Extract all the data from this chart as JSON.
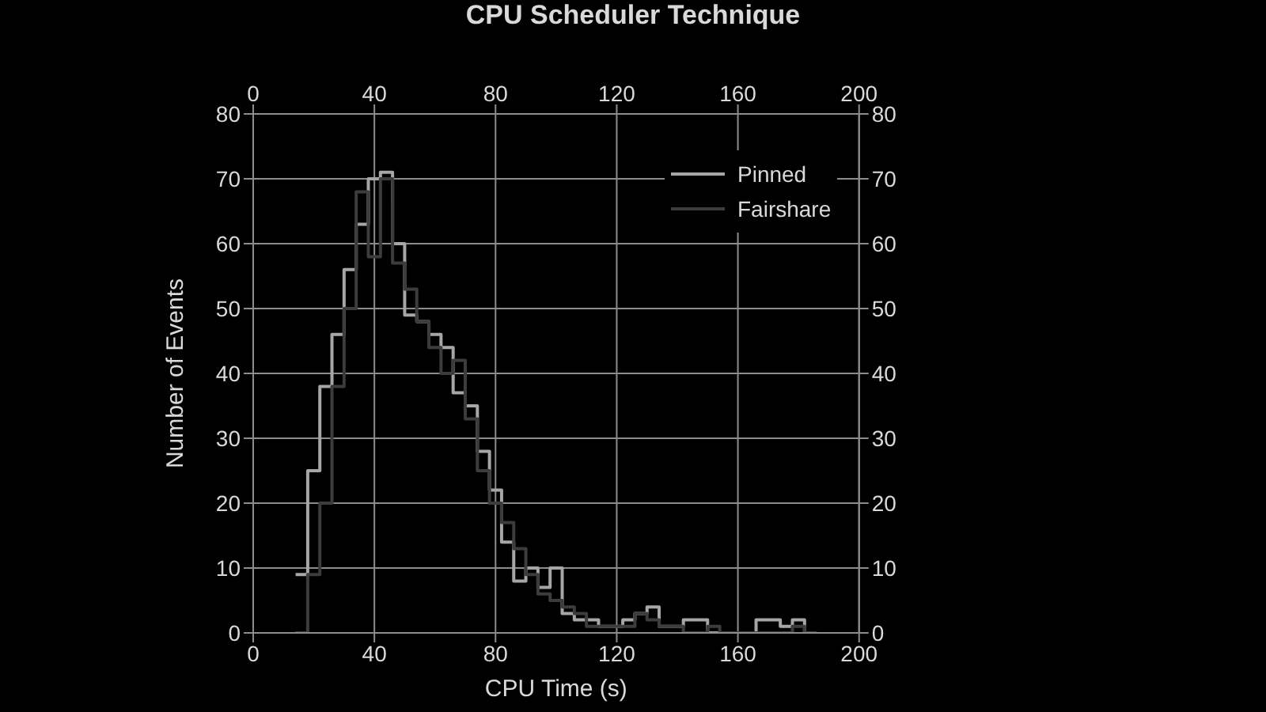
{
  "chart_data": {
    "type": "histogram",
    "title": "CPU Scheduler Technique",
    "xlabel": "CPU Time (s)",
    "ylabel": "Number of Events",
    "bins": [
      14,
      18,
      22,
      26,
      30,
      34,
      38,
      42,
      46,
      50,
      54,
      58,
      62,
      66,
      70,
      74,
      78,
      82,
      86,
      90,
      94,
      98,
      102,
      106,
      110,
      114,
      118,
      122,
      126,
      130,
      134,
      138,
      142,
      146,
      150,
      154,
      158,
      162,
      166,
      170,
      174,
      178,
      182,
      186
    ],
    "series": [
      {
        "name": "Pinned",
        "color": "#a6a6a6",
        "values": [
          9,
          25,
          38,
          46,
          56,
          63,
          70,
          71,
          60,
          49,
          48,
          46,
          44,
          37,
          35,
          28,
          22,
          14,
          8,
          10,
          7,
          10,
          3,
          2,
          2,
          1,
          1,
          2,
          3,
          4,
          1,
          1,
          2,
          2,
          0,
          0,
          0,
          0,
          2,
          2,
          1,
          2,
          0
        ]
      },
      {
        "name": "Fairshare",
        "color": "#3c3c3c",
        "values": [
          0,
          9,
          20,
          38,
          50,
          68,
          58,
          70,
          57,
          53,
          48,
          44,
          40,
          42,
          33,
          25,
          20,
          17,
          13,
          9,
          6,
          5,
          4,
          3,
          1,
          1,
          1,
          1,
          3,
          2,
          1,
          1,
          0,
          0,
          1,
          0,
          0,
          0,
          0,
          0,
          0,
          1,
          0
        ]
      }
    ],
    "xlim": [
      0,
      200
    ],
    "xticks": [
      0,
      40,
      80,
      120,
      160,
      200
    ],
    "x2lim": [
      0,
      200
    ],
    "x2ticks": [
      0,
      40,
      80,
      120,
      160,
      200
    ],
    "ylim": [
      0,
      80
    ],
    "yticks": [
      0,
      10,
      20,
      30,
      40,
      50,
      60,
      70,
      80
    ],
    "y2lim": [
      0,
      80
    ],
    "y2ticks": [
      0,
      10,
      20,
      30,
      40,
      50,
      60,
      70,
      80
    ],
    "grid": true,
    "legend": "top right"
  }
}
